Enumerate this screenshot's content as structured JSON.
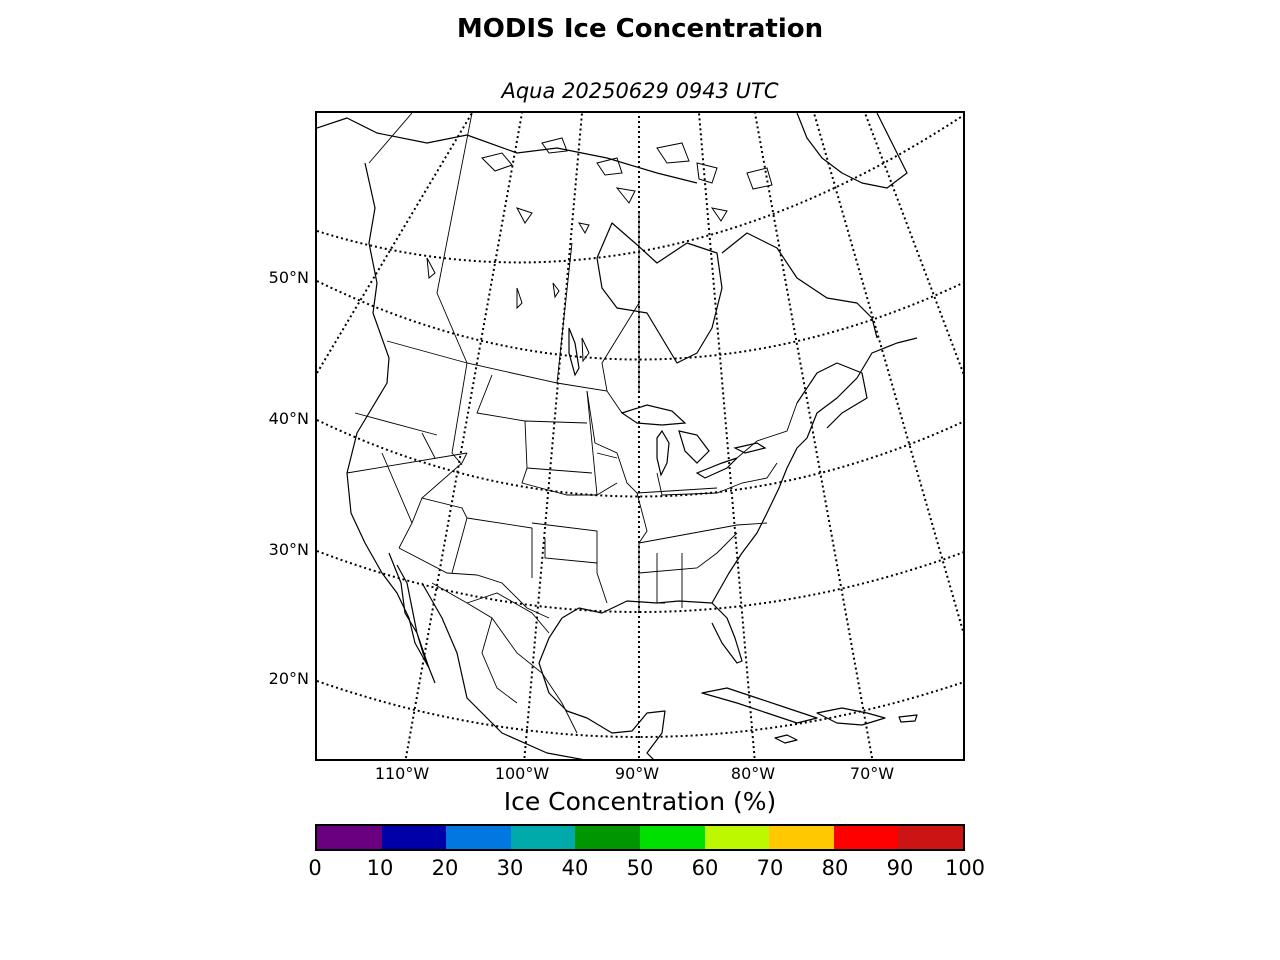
{
  "title": "MODIS Ice Concentration",
  "subtitle": "Aqua 20250629 0943 UTC",
  "map": {
    "region": "North America",
    "projection": "lambert-conformal",
    "latitude_labels": [
      "50°N",
      "40°N",
      "30°N",
      "20°N"
    ],
    "longitude_labels": [
      "110°W",
      "100°W",
      "90°W",
      "80°W",
      "70°W"
    ],
    "graticule_style": "dotted",
    "ice_coverage_visible": false
  },
  "colorbar": {
    "label": "Ice Concentration (%)",
    "ticks": [
      "0",
      "10",
      "20",
      "30",
      "40",
      "50",
      "60",
      "70",
      "80",
      "90",
      "100"
    ],
    "colors": [
      "#6a007f",
      "#0000a8",
      "#0078e0",
      "#00aaaa",
      "#009600",
      "#00e000",
      "#bef800",
      "#ffc800",
      "#ff0000",
      "#cc1414"
    ]
  }
}
